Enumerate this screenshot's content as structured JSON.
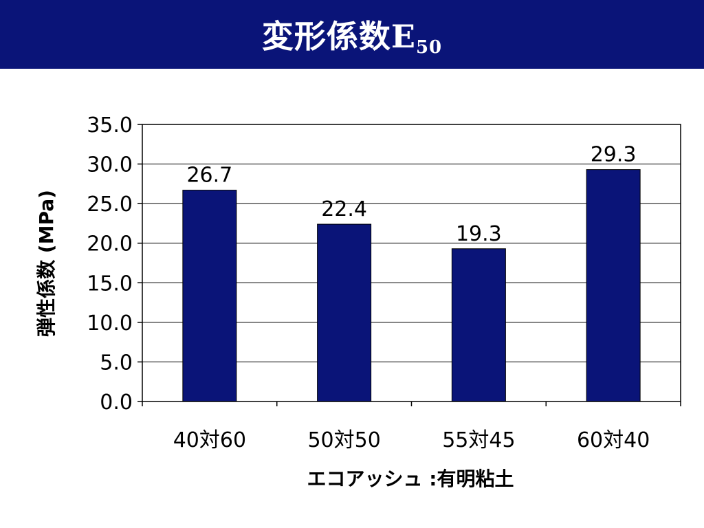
{
  "slide": {
    "title_main": "変形係数E",
    "title_sub": "50",
    "header_color": "#0a1478"
  },
  "chart_data": {
    "type": "bar",
    "categories": [
      "40対60",
      "50対50",
      "55対45",
      "60対40"
    ],
    "values": [
      26.7,
      22.4,
      19.3,
      29.3
    ],
    "value_labels": [
      "26.7",
      "22.4",
      "19.3",
      "29.3"
    ],
    "title": "",
    "xlabel": "エコアッシュ :有明粘土",
    "ylabel": "弾性係数 (MPa)",
    "ylim": [
      0,
      35
    ],
    "yticks": [
      "0.0",
      "5.0",
      "10.0",
      "15.0",
      "20.0",
      "25.0",
      "30.0",
      "35.0"
    ],
    "grid": true,
    "legend": "none",
    "bar_color": "#0a1478"
  }
}
